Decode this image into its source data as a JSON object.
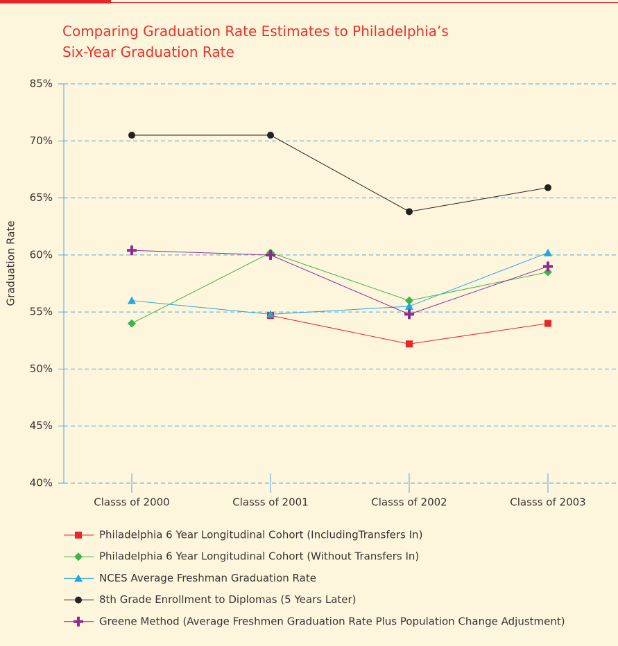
{
  "chart_data": {
    "type": "line",
    "title": "Comparing Graduation Rate Estimates to Philadelphia’s Six-Year Graduation Rate",
    "y_label": "Graduation Rate",
    "categories": [
      "Classs of 2000",
      "Classs of 2001",
      "Classs of 2002",
      "Classs of 2003"
    ],
    "series": [
      {
        "name": "Philadelphia 6 Year Longitudinal Cohort (IncludingTransfers In)",
        "color": "#e8262a",
        "marker": "square",
        "values": [
          null,
          54.7,
          52.2,
          54.0
        ]
      },
      {
        "name": "Philadelphia 6 Year Longitudinal Cohort (Without Transfers In)",
        "color": "#3cb44a",
        "marker": "diamond",
        "values": [
          54.0,
          60.2,
          56.0,
          58.5
        ]
      },
      {
        "name": "NCES Average Freshman Graduation Rate",
        "color": "#1ea7e1",
        "marker": "triangle",
        "values": [
          56.0,
          54.8,
          55.5,
          60.2
        ]
      },
      {
        "name": "8th Grade Enrollment to Diplomas (5 Years Later)",
        "color": "#222222",
        "marker": "circle",
        "values": [
          71.5,
          71.5,
          63.8,
          65.9
        ]
      },
      {
        "name": "Greene Method (Average Freshmen Graduation Rate Plus Population Change Adjustment)",
        "color": "#8e2b8f",
        "marker": "cross",
        "values": [
          60.4,
          60.0,
          54.8,
          59.0
        ]
      }
    ],
    "ylim": [
      40,
      85
    ],
    "yticks": [
      {
        "value": 40,
        "label": "40%"
      },
      {
        "value": 45,
        "label": "45%"
      },
      {
        "value": 50,
        "label": "50%"
      },
      {
        "value": 55,
        "label": "55%"
      },
      {
        "value": 60,
        "label": "60%"
      },
      {
        "value": 65,
        "label": "65%"
      },
      {
        "value": 70,
        "label": "70%"
      },
      {
        "value": 85,
        "label": "85%"
      }
    ],
    "grid": true,
    "legend": "bottom"
  }
}
